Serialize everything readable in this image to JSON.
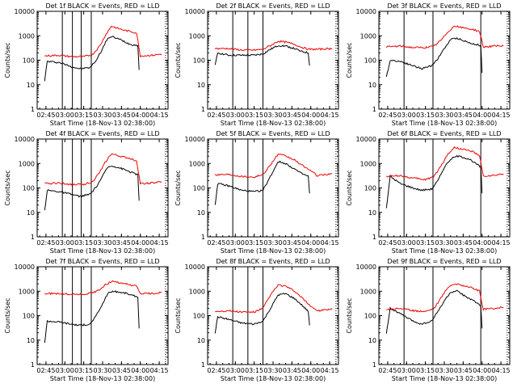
{
  "chart_data": [
    {
      "type": "line",
      "title": "Det 1f BLACK = Events, RED = LLD",
      "xlabel": "Start Time (18-Nov-13 02:38:00)",
      "ylabel": "Counts/sec",
      "x_ticks": [
        "02:45",
        "03:00",
        "03:15",
        "03:30",
        "03:45",
        "04:00",
        "04:15"
      ],
      "y_ticks": [
        "1",
        "10",
        "100",
        "1000",
        "10000"
      ],
      "ylim": [
        1,
        10000
      ],
      "yscale": "log",
      "grid": false,
      "series_colors": {
        "events": "#000000",
        "lld": "#ee0000"
      },
      "series": [
        {
          "name": "Events",
          "x": [
            "02:44",
            "02:46",
            "02:56",
            "03:05",
            "03:12",
            "03:20",
            "03:25",
            "03:30",
            "03:34",
            "03:38",
            "03:44",
            "03:50",
            "03:52",
            "03:58",
            "03:59"
          ],
          "values": [
            15,
            90,
            80,
            55,
            45,
            50,
            100,
            300,
            800,
            900,
            700,
            500,
            450,
            400,
            40
          ]
        },
        {
          "name": "LLD",
          "x": [
            "02:44",
            "02:55",
            "03:05",
            "03:15",
            "03:22",
            "03:28",
            "03:32",
            "03:37",
            "03:42",
            "03:47",
            "03:52",
            "03:57",
            "04:00",
            "04:10",
            "04:17"
          ],
          "values": [
            150,
            160,
            140,
            140,
            170,
            400,
            1000,
            2500,
            2000,
            1700,
            1500,
            1300,
            150,
            160,
            180
          ]
        }
      ],
      "vlines": [
        "02:58",
        "03:06",
        "03:13",
        "03:21"
      ]
    },
    {
      "type": "line",
      "title": "Det 2f BLACK = Events, RED = LLD",
      "xlabel": "Start Time (18-Nov-13 02:38:00)",
      "ylabel": "Counts/sec",
      "x_ticks": [
        "02:45",
        "03:00",
        "03:15",
        "03:30",
        "03:45",
        "04:00",
        "04:15"
      ],
      "y_ticks": [
        "1",
        "10",
        "100",
        "1000",
        "10000"
      ],
      "ylim": [
        1,
        10000
      ],
      "yscale": "log",
      "grid": false,
      "series_colors": {
        "events": "#000000",
        "lld": "#ee0000"
      },
      "series": [
        {
          "name": "Events",
          "x": [
            "02:44",
            "02:46",
            "02:55",
            "03:05",
            "03:15",
            "03:22",
            "03:28",
            "03:34",
            "03:40",
            "03:47",
            "03:52",
            "03:58",
            "03:59"
          ],
          "values": [
            60,
            200,
            160,
            160,
            160,
            180,
            280,
            400,
            380,
            300,
            230,
            200,
            60
          ]
        },
        {
          "name": "LLD",
          "x": [
            "02:44",
            "02:55",
            "03:05",
            "03:15",
            "03:22",
            "03:28",
            "03:34",
            "03:40",
            "03:47",
            "03:52",
            "03:58",
            "04:05",
            "04:17"
          ],
          "values": [
            300,
            300,
            260,
            260,
            280,
            400,
            600,
            550,
            450,
            350,
            280,
            280,
            300
          ]
        }
      ],
      "vlines": [
        "02:58",
        "03:10",
        "03:22"
      ]
    },
    {
      "type": "line",
      "title": "Det 3f BLACK = Events, RED = LLD",
      "xlabel": "Start Time (18-Nov-13 02:38:00)",
      "ylabel": "Counts/sec",
      "x_ticks": [
        "02:45",
        "03:00",
        "03:15",
        "03:30",
        "03:45",
        "04:00",
        "04:15"
      ],
      "y_ticks": [
        "1",
        "10",
        "100",
        "1000",
        "10000"
      ],
      "ylim": [
        1,
        10000
      ],
      "yscale": "log",
      "grid": false,
      "series_colors": {
        "events": "#000000",
        "lld": "#ee0000"
      },
      "series": [
        {
          "name": "Events",
          "x": [
            "02:44",
            "02:47",
            "02:55",
            "03:05",
            "03:12",
            "03:20",
            "03:25",
            "03:30",
            "03:35",
            "03:40",
            "03:45",
            "03:50",
            "03:55",
            "03:59",
            "04:00"
          ],
          "values": [
            20,
            100,
            90,
            60,
            45,
            60,
            120,
            300,
            700,
            800,
            650,
            500,
            450,
            400,
            30
          ]
        },
        {
          "name": "LLD",
          "x": [
            "02:44",
            "02:55",
            "03:05",
            "03:15",
            "03:22",
            "03:28",
            "03:33",
            "03:38",
            "03:43",
            "03:48",
            "03:53",
            "03:58",
            "04:01",
            "04:10",
            "04:17"
          ],
          "values": [
            350,
            380,
            330,
            330,
            380,
            700,
            1500,
            2500,
            2200,
            2000,
            1800,
            1500,
            350,
            380,
            380
          ]
        }
      ],
      "vlines": [
        "02:58",
        "03:21",
        "03:59"
      ]
    },
    {
      "type": "line",
      "title": "Det 4f BLACK = Events, RED = LLD",
      "xlabel": "Start Time (18-Nov-13 02:38:00)",
      "ylabel": "Counts/sec",
      "x_ticks": [
        "02:45",
        "03:00",
        "03:15",
        "03:30",
        "03:45",
        "04:00",
        "04:15"
      ],
      "y_ticks": [
        "1",
        "10",
        "100",
        "1000",
        "10000"
      ],
      "ylim": [
        1,
        10000
      ],
      "yscale": "log",
      "grid": false,
      "series_colors": {
        "events": "#000000",
        "lld": "#ee0000"
      },
      "series": [
        {
          "name": "Events",
          "x": [
            "02:44",
            "02:46",
            "02:56",
            "03:05",
            "03:12",
            "03:20",
            "03:25",
            "03:30",
            "03:34",
            "03:38",
            "03:44",
            "03:50",
            "03:52",
            "03:58",
            "03:59"
          ],
          "values": [
            12,
            80,
            70,
            55,
            45,
            55,
            110,
            300,
            700,
            800,
            650,
            500,
            450,
            350,
            30
          ]
        },
        {
          "name": "LLD",
          "x": [
            "02:44",
            "02:55",
            "03:05",
            "03:15",
            "03:22",
            "03:28",
            "03:32",
            "03:37",
            "03:42",
            "03:47",
            "03:52",
            "03:57",
            "04:00",
            "04:10",
            "04:17"
          ],
          "values": [
            150,
            160,
            140,
            140,
            180,
            450,
            1100,
            2500,
            2100,
            1800,
            1600,
            1300,
            150,
            160,
            180
          ]
        }
      ],
      "vlines": [
        "02:58",
        "03:06",
        "03:13",
        "03:21"
      ]
    },
    {
      "type": "line",
      "title": "Det 5f BLACK = Events, RED = LLD",
      "xlabel": "Start Time (18-Nov-13 02:38:00)",
      "ylabel": "Counts/sec",
      "x_ticks": [
        "02:45",
        "03:00",
        "03:15",
        "03:30",
        "03:45",
        "04:00",
        "04:15"
      ],
      "y_ticks": [
        "1",
        "10",
        "100",
        "1000",
        "10000"
      ],
      "ylim": [
        1,
        10000
      ],
      "yscale": "log",
      "grid": false,
      "series_colors": {
        "events": "#000000",
        "lld": "#ee0000"
      },
      "series": [
        {
          "name": "Events",
          "x": [
            "02:44",
            "02:46",
            "02:55",
            "03:05",
            "03:15",
            "03:22",
            "03:28",
            "03:34",
            "03:40",
            "03:47",
            "03:52",
            "03:58",
            "03:59"
          ],
          "values": [
            20,
            150,
            120,
            80,
            70,
            80,
            300,
            1200,
            1000,
            600,
            400,
            300,
            60
          ]
        },
        {
          "name": "LLD",
          "x": [
            "02:44",
            "02:55",
            "03:05",
            "03:15",
            "03:22",
            "03:28",
            "03:34",
            "03:40",
            "03:47",
            "03:52",
            "03:58",
            "04:05",
            "04:17"
          ],
          "values": [
            350,
            360,
            300,
            280,
            350,
            900,
            2400,
            2000,
            1400,
            900,
            600,
            320,
            380
          ]
        }
      ],
      "vlines": [
        "02:58",
        "03:10",
        "03:22"
      ]
    },
    {
      "type": "line",
      "title": "Det 6f BLACK = Events, RED = LLD",
      "xlabel": "Start Time (18-Nov-13 02:38:00)",
      "ylabel": "Counts/sec",
      "x_ticks": [
        "02:45",
        "03:00",
        "03:15",
        "03:30",
        "03:45",
        "04:00",
        "04:15"
      ],
      "y_ticks": [
        "1",
        "10",
        "100",
        "1000",
        "10000"
      ],
      "ylim": [
        1,
        10000
      ],
      "yscale": "log",
      "grid": false,
      "series_colors": {
        "events": "#000000",
        "lld": "#ee0000"
      },
      "series": [
        {
          "name": "Events",
          "x": [
            "02:44",
            "02:47",
            "02:55",
            "03:05",
            "03:12",
            "03:20",
            "03:25",
            "03:30",
            "03:35",
            "03:40",
            "03:45",
            "03:50",
            "03:55",
            "03:59",
            "04:00"
          ],
          "values": [
            15,
            300,
            150,
            100,
            80,
            90,
            200,
            700,
            1500,
            2000,
            1800,
            1500,
            1000,
            700,
            60
          ]
        },
        {
          "name": "LLD",
          "x": [
            "02:44",
            "02:55",
            "03:05",
            "03:15",
            "03:22",
            "03:28",
            "03:33",
            "03:38",
            "03:43",
            "03:48",
            "03:53",
            "03:58",
            "04:01",
            "04:10",
            "04:17"
          ],
          "values": [
            300,
            320,
            250,
            220,
            300,
            900,
            2500,
            4500,
            4000,
            3500,
            3000,
            2000,
            300,
            320,
            380
          ]
        }
      ],
      "vlines": [
        "02:58",
        "03:21",
        "03:59"
      ]
    },
    {
      "type": "line",
      "title": "Det 7f BLACK = Events, RED = LLD",
      "xlabel": "Start Time (18-Nov-13 02:38:00)",
      "ylabel": "Counts/sec",
      "x_ticks": [
        "02:45",
        "03:00",
        "03:15",
        "03:30",
        "03:45",
        "04:00",
        "04:15"
      ],
      "y_ticks": [
        "1",
        "10",
        "100",
        "1000",
        "10000"
      ],
      "ylim": [
        1,
        10000
      ],
      "yscale": "log",
      "grid": false,
      "series_colors": {
        "events": "#000000",
        "lld": "#ee0000"
      },
      "series": [
        {
          "name": "Events",
          "x": [
            "02:44",
            "02:46",
            "02:56",
            "03:05",
            "03:12",
            "03:20",
            "03:25",
            "03:30",
            "03:34",
            "03:38",
            "03:44",
            "03:50",
            "03:52",
            "03:58",
            "03:59"
          ],
          "values": [
            8,
            60,
            55,
            45,
            40,
            45,
            100,
            300,
            800,
            1000,
            900,
            800,
            700,
            600,
            30
          ]
        },
        {
          "name": "LLD",
          "x": [
            "02:44",
            "02:55",
            "03:05",
            "03:15",
            "03:22",
            "03:28",
            "03:32",
            "03:37",
            "03:42",
            "03:47",
            "03:52",
            "03:57",
            "04:00",
            "04:10",
            "04:17"
          ],
          "values": [
            800,
            800,
            750,
            750,
            850,
            1200,
            1800,
            2500,
            2300,
            2000,
            1800,
            1600,
            800,
            800,
            900
          ]
        }
      ],
      "vlines": [
        "02:58",
        "03:06",
        "03:13",
        "03:21"
      ]
    },
    {
      "type": "line",
      "title": "Det 8f BLACK = Events, RED = LLD",
      "xlabel": "Start Time (18-Nov-13 02:38:00)",
      "ylabel": "Counts/sec",
      "x_ticks": [
        "02:45",
        "03:00",
        "03:15",
        "03:30",
        "03:45",
        "04:00",
        "04:15"
      ],
      "y_ticks": [
        "1",
        "10",
        "100",
        "1000",
        "10000"
      ],
      "ylim": [
        1,
        10000
      ],
      "yscale": "log",
      "grid": false,
      "series_colors": {
        "events": "#000000",
        "lld": "#ee0000"
      },
      "series": [
        {
          "name": "Events",
          "x": [
            "02:44",
            "02:46",
            "02:55",
            "03:05",
            "03:15",
            "03:22",
            "03:28",
            "03:34",
            "03:40",
            "03:47",
            "03:52",
            "03:58",
            "03:59"
          ],
          "values": [
            20,
            90,
            70,
            50,
            45,
            60,
            200,
            700,
            800,
            500,
            300,
            150,
            40
          ]
        },
        {
          "name": "LLD",
          "x": [
            "02:44",
            "02:55",
            "03:05",
            "03:15",
            "03:22",
            "03:28",
            "03:34",
            "03:40",
            "03:47",
            "03:52",
            "03:58",
            "04:05",
            "04:17"
          ],
          "values": [
            150,
            160,
            140,
            140,
            200,
            700,
            1800,
            1600,
            1000,
            600,
            300,
            160,
            180
          ]
        }
      ],
      "vlines": [
        "02:58",
        "03:10",
        "03:22"
      ]
    },
    {
      "type": "line",
      "title": "Det 9f BLACK = Events, RED = LLD",
      "xlabel": "Start Time (18-Nov-13 02:38:00)",
      "ylabel": "Counts/sec",
      "x_ticks": [
        "02:45",
        "03:00",
        "03:15",
        "03:30",
        "03:45",
        "04:00",
        "04:15"
      ],
      "y_ticks": [
        "1",
        "10",
        "100",
        "1000",
        "10000"
      ],
      "ylim": [
        1,
        10000
      ],
      "yscale": "log",
      "grid": false,
      "series_colors": {
        "events": "#000000",
        "lld": "#ee0000"
      },
      "series": [
        {
          "name": "Events",
          "x": [
            "02:44",
            "02:47",
            "02:55",
            "03:05",
            "03:12",
            "03:20",
            "03:25",
            "03:30",
            "03:35",
            "03:40",
            "03:45",
            "03:50",
            "03:55",
            "03:59",
            "04:00"
          ],
          "values": [
            20,
            200,
            120,
            60,
            45,
            60,
            150,
            400,
            900,
            1000,
            700,
            500,
            350,
            250,
            30
          ]
        },
        {
          "name": "LLD",
          "x": [
            "02:44",
            "02:55",
            "03:05",
            "03:15",
            "03:22",
            "03:28",
            "03:33",
            "03:38",
            "03:43",
            "03:48",
            "03:53",
            "03:58",
            "04:01",
            "04:10",
            "04:17"
          ],
          "values": [
            180,
            200,
            160,
            150,
            200,
            600,
            1500,
            2000,
            1800,
            1600,
            1300,
            1000,
            180,
            200,
            220
          ]
        }
      ],
      "vlines": [
        "02:58",
        "03:21",
        "03:59"
      ]
    }
  ]
}
